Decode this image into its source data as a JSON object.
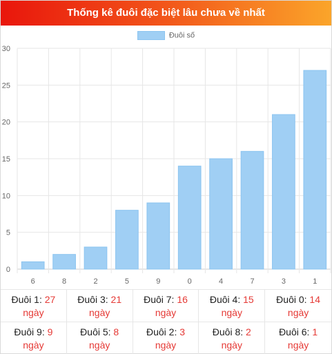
{
  "header": {
    "title": "Thống kê đuôi đặc biệt lâu chưa về nhất"
  },
  "legend": {
    "label": "Đuôi số"
  },
  "colors": {
    "bar": "#a0cff4",
    "bar_border": "#8cc4f0",
    "accent": "#e53935"
  },
  "chart_data": {
    "type": "bar",
    "categories": [
      "6",
      "8",
      "2",
      "5",
      "9",
      "0",
      "4",
      "7",
      "3",
      "1"
    ],
    "series": [
      {
        "name": "Đuôi số",
        "values": [
          1,
          2,
          3,
          8,
          9,
          14,
          15,
          16,
          21,
          27
        ]
      }
    ],
    "ylim": [
      0,
      30
    ],
    "yticks": [
      0,
      5,
      10,
      15,
      20,
      25,
      30
    ],
    "grid": true,
    "legend_position": "top-center",
    "title": "",
    "xlabel": "",
    "ylabel": ""
  },
  "stats": [
    {
      "label": "Đuôi 1:",
      "value": "27",
      "unit": "ngày"
    },
    {
      "label": "Đuôi 3:",
      "value": "21",
      "unit": "ngày"
    },
    {
      "label": "Đuôi 7:",
      "value": "16",
      "unit": "ngày"
    },
    {
      "label": "Đuôi 4:",
      "value": "15",
      "unit": "ngày"
    },
    {
      "label": "Đuôi 0:",
      "value": "14",
      "unit": "ngày"
    },
    {
      "label": "Đuôi 9:",
      "value": "9",
      "unit": "ngày"
    },
    {
      "label": "Đuôi 5:",
      "value": "8",
      "unit": "ngày"
    },
    {
      "label": "Đuôi 2:",
      "value": "3",
      "unit": "ngày"
    },
    {
      "label": "Đuôi 8:",
      "value": "2",
      "unit": "ngày"
    },
    {
      "label": "Đuôi 6:",
      "value": "1",
      "unit": "ngày"
    }
  ]
}
